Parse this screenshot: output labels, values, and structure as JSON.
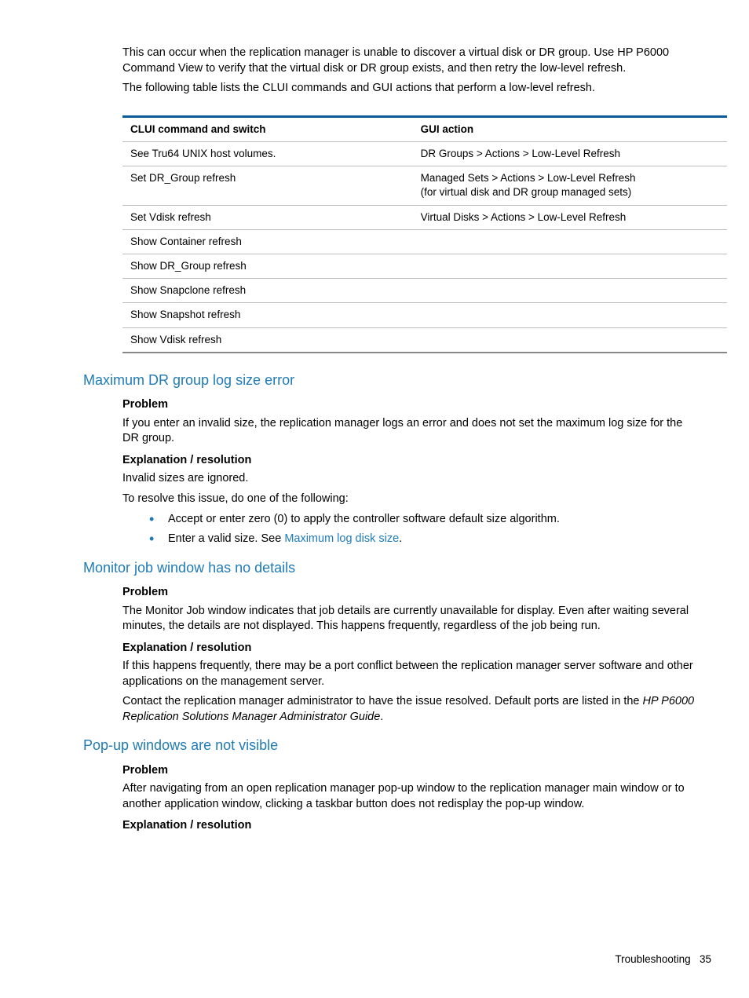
{
  "intro": {
    "p1": "This can occur when the replication manager is unable to discover a virtual disk or DR group. Use HP P6000 Command View to verify that the virtual disk or DR group exists, and then retry the low-level refresh.",
    "p2": "The following table lists the CLUI commands and GUI actions that perform a low-level refresh."
  },
  "table": {
    "header": {
      "c1": "CLUI command and switch",
      "c2": "GUI action"
    },
    "rows": [
      {
        "c1": "See Tru64 UNIX host volumes.",
        "c2": "DR Groups > Actions > Low-Level Refresh"
      },
      {
        "c1": "Set DR_Group refresh",
        "c2": "Managed Sets > Actions > Low-Level Refresh\n(for virtual disk and DR group managed sets)"
      },
      {
        "c1": "Set Vdisk refresh",
        "c2": "Virtual Disks > Actions > Low-Level Refresh"
      },
      {
        "c1": "Show Container refresh",
        "c2": ""
      },
      {
        "c1": "Show DR_Group refresh",
        "c2": ""
      },
      {
        "c1": "Show Snapclone refresh",
        "c2": ""
      },
      {
        "c1": "Show Snapshot refresh",
        "c2": ""
      },
      {
        "c1": "Show Vdisk refresh",
        "c2": ""
      }
    ]
  },
  "sec1": {
    "title": "Maximum DR group log size error",
    "problem_h": "Problem",
    "problem_p": "If you enter an invalid size, the replication manager logs an error and does not set the maximum log size for the DR group.",
    "expl_h": "Explanation / resolution",
    "expl_p1": "Invalid sizes are ignored.",
    "expl_p2": "To resolve this issue, do one of the following:",
    "b1": "Accept or enter zero (0) to apply the controller software default size algorithm.",
    "b2_a": "Enter a valid size. See ",
    "b2_link": "Maximum log disk size",
    "b2_b": "."
  },
  "sec2": {
    "title": "Monitor job window has no details",
    "problem_h": "Problem",
    "problem_p": "The Monitor Job window indicates that job details are currently unavailable for display. Even after waiting several minutes, the details are not displayed. This happens frequently, regardless of the job being run.",
    "expl_h": "Explanation / resolution",
    "expl_p1": "If this happens frequently, there may be a port conflict between the replication manager server software and other applications on the management server.",
    "expl_p2a": "Contact the replication manager administrator to have the issue resolved. Default ports are listed in the ",
    "expl_p2_ital": "HP P6000 Replication Solutions Manager Administrator Guide",
    "expl_p2b": "."
  },
  "sec3": {
    "title": "Pop-up windows are not visible",
    "problem_h": "Problem",
    "problem_p": "After navigating from an open replication manager pop-up window to the replication manager main window or to another application window, clicking a taskbar button does not redisplay the pop-up window.",
    "expl_h": "Explanation / resolution"
  },
  "footer": {
    "label": "Troubleshooting",
    "page": "35"
  }
}
